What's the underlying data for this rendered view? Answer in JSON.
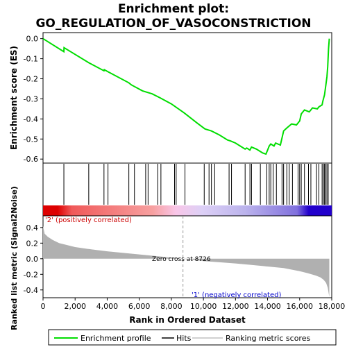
{
  "chart_data": [
    {
      "type": "line",
      "title_line1": "Enrichment plot:",
      "title_line2": "GO_REGULATION_OF_VASOCONSTRICTION",
      "ylabel": "Enrichment score (ES)",
      "xlim": [
        0,
        18000
      ],
      "ylim": [
        -0.62,
        0.03
      ],
      "yticks": [
        "0.0",
        "-0.1",
        "-0.2",
        "-0.3",
        "-0.4",
        "-0.5",
        "-0.6"
      ],
      "ytick_values": [
        0.0,
        -0.1,
        -0.2,
        -0.3,
        -0.4,
        -0.5,
        -0.6
      ],
      "grid": false,
      "color": "#00dd00",
      "x": [
        0,
        1300,
        1310,
        2850,
        3800,
        3820,
        4050,
        5350,
        5500,
        6200,
        6800,
        7300,
        8000,
        8800,
        9600,
        10100,
        10500,
        11000,
        11500,
        11700,
        12000,
        12600,
        12700,
        12900,
        13000,
        13300,
        13500,
        13700,
        13900,
        14000,
        14100,
        14200,
        14400,
        14500,
        14800,
        15000,
        15200,
        15500,
        15800,
        16000,
        16100,
        16300,
        16600,
        16800,
        17100,
        17200,
        17400,
        17450,
        17550,
        17600,
        17700,
        17750,
        17800,
        17850
      ],
      "y": [
        0.0,
        -0.065,
        -0.045,
        -0.12,
        -0.16,
        -0.155,
        -0.165,
        -0.22,
        -0.23,
        -0.26,
        -0.275,
        -0.295,
        -0.325,
        -0.37,
        -0.42,
        -0.45,
        -0.46,
        -0.48,
        -0.505,
        -0.51,
        -0.52,
        -0.55,
        -0.545,
        -0.555,
        -0.54,
        -0.55,
        -0.56,
        -0.57,
        -0.575,
        -0.555,
        -0.535,
        -0.525,
        -0.535,
        -0.52,
        -0.53,
        -0.46,
        -0.445,
        -0.425,
        -0.43,
        -0.41,
        -0.375,
        -0.355,
        -0.365,
        -0.345,
        -0.35,
        -0.34,
        -0.33,
        -0.31,
        -0.28,
        -0.25,
        -0.19,
        -0.14,
        -0.05,
        0.0
      ]
    },
    {
      "type": "hits",
      "xlim": [
        0,
        18000
      ],
      "hit_positions": [
        1300,
        2850,
        3800,
        4050,
        5350,
        5700,
        6400,
        6550,
        7150,
        7350,
        8200,
        8300,
        8850,
        10050,
        10350,
        10500,
        10700,
        11600,
        11750,
        12600,
        12900,
        13000,
        13550,
        13950,
        14100,
        14200,
        14350,
        14550,
        14900,
        15000,
        15200,
        15350,
        15550,
        15900,
        16000,
        16100,
        16300,
        16550,
        16700,
        17050,
        17200,
        17400,
        17480,
        17550,
        17620,
        17700,
        17780
      ],
      "gradient_colors": [
        "#dd0000",
        "#f05a5a",
        "#f7a0a0",
        "#f9c6e8",
        "#ddd0f6",
        "#bbb3ec",
        "#8070dd",
        "#2200cc"
      ]
    },
    {
      "type": "area",
      "ylabel": "Ranked list metric (Signal2Noise)",
      "xlabel": "Rank in Ordered Dataset",
      "xlim": [
        0,
        18000
      ],
      "ylim": [
        -0.5,
        0.55
      ],
      "yticks": [
        "0.4",
        "0.2",
        "0.0",
        "-0.2",
        "-0.4"
      ],
      "ytick_values": [
        0.4,
        0.2,
        0.0,
        -0.2,
        -0.4
      ],
      "xticks": [
        "0",
        "2,000",
        "4,000",
        "6,000",
        "8,000",
        "10,000",
        "12,000",
        "14,000",
        "16,000",
        "18,000"
      ],
      "xtick_values": [
        0,
        2000,
        4000,
        6000,
        8000,
        10000,
        12000,
        14000,
        16000,
        18000
      ],
      "x": [
        0,
        100,
        300,
        600,
        1000,
        2000,
        3000,
        4000,
        5000,
        6000,
        7000,
        8000,
        8726,
        10000,
        11000,
        12000,
        13000,
        14000,
        15000,
        15500,
        16000,
        16500,
        17000,
        17300,
        17500,
        17650,
        17750,
        17850
      ],
      "y": [
        0.42,
        0.32,
        0.28,
        0.24,
        0.2,
        0.15,
        0.12,
        0.095,
        0.075,
        0.055,
        0.035,
        0.015,
        0.0,
        -0.03,
        -0.045,
        -0.06,
        -0.08,
        -0.1,
        -0.12,
        -0.14,
        -0.16,
        -0.185,
        -0.215,
        -0.24,
        -0.27,
        -0.31,
        -0.37,
        -0.49
      ],
      "zero_cross_label": "Zero cross at 8726",
      "zero_cross": 8726,
      "pos_label": "'2' (positively correlated)",
      "neg_label": "'1' (negatively correlated)",
      "fill_color": "#b0b0b0"
    }
  ],
  "legend": {
    "items": [
      {
        "label": "Enrichment profile",
        "color": "#00dd00"
      },
      {
        "label": "Hits",
        "color": "#000000"
      },
      {
        "label": "Ranking metric scores",
        "color": "#c0c0c0"
      }
    ]
  }
}
